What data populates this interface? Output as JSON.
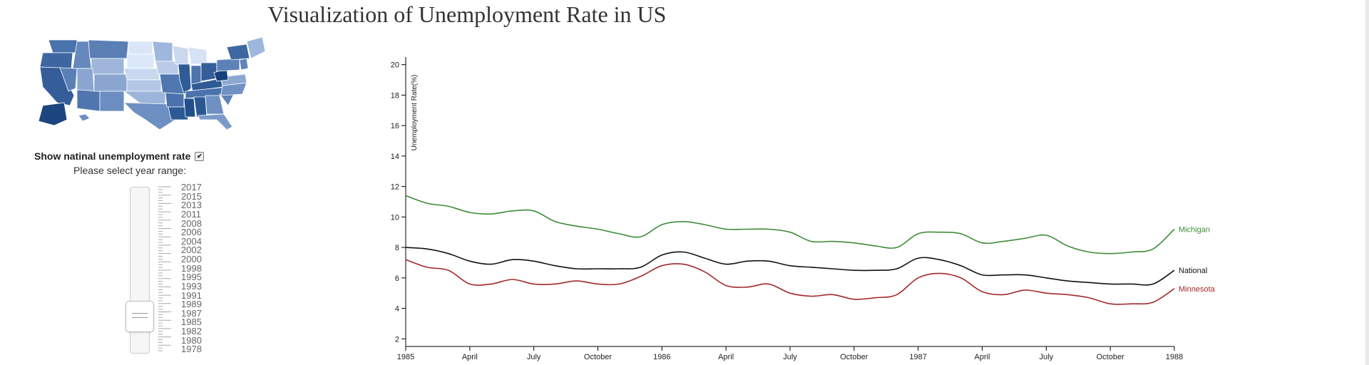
{
  "page": {
    "title": "Visualization of Unemployment Rate in US"
  },
  "controls": {
    "toggle_label": "Show natinal unemployment rate",
    "toggle_checked": true,
    "range_label": "Please select year range:",
    "years": [
      "2017",
      "2015",
      "2013",
      "2011",
      "2008",
      "2006",
      "2004",
      "2002",
      "2000",
      "1998",
      "1995",
      "1993",
      "1991",
      "1989",
      "1987",
      "1985",
      "1982",
      "1980",
      "1978"
    ]
  },
  "colors": {
    "map_dark": "#2c5a94",
    "map_light": "#dbe7f7",
    "michigan": "#3c8c36",
    "national": "#111111",
    "minnesota": "#a3282a"
  },
  "chart_data": {
    "type": "line",
    "x": [
      "1985-01",
      "1985-02",
      "1985-03",
      "1985-04",
      "1985-05",
      "1985-06",
      "1985-07",
      "1985-08",
      "1985-09",
      "1985-10",
      "1985-11",
      "1985-12",
      "1986-01",
      "1986-02",
      "1986-03",
      "1986-04",
      "1986-05",
      "1986-06",
      "1986-07",
      "1986-08",
      "1986-09",
      "1986-10",
      "1986-11",
      "1986-12",
      "1987-01",
      "1987-02",
      "1987-03",
      "1987-04",
      "1987-05",
      "1987-06",
      "1987-07",
      "1987-08",
      "1987-09",
      "1987-10",
      "1987-11",
      "1987-12",
      "1988-01"
    ],
    "x_ticks": [
      "1985",
      "April",
      "July",
      "October",
      "1986",
      "April",
      "July",
      "October",
      "1987",
      "April",
      "July",
      "October",
      "1988"
    ],
    "ylabel": "Unemployment Rate(%)",
    "ylim": [
      1.5,
      20.5
    ],
    "y_ticks": [
      2,
      4,
      6,
      8,
      10,
      12,
      14,
      16,
      18,
      20
    ],
    "series": [
      {
        "name": "Michigan",
        "color": "#3c8c36",
        "values": [
          11.4,
          10.9,
          10.7,
          10.3,
          10.2,
          10.4,
          10.4,
          9.7,
          9.4,
          9.2,
          8.9,
          8.7,
          9.5,
          9.7,
          9.5,
          9.2,
          9.2,
          9.2,
          9.0,
          8.4,
          8.4,
          8.3,
          8.1,
          8.0,
          8.9,
          9.0,
          8.9,
          8.3,
          8.4,
          8.6,
          8.8,
          8.1,
          7.7,
          7.6,
          7.7,
          7.9,
          9.2
        ]
      },
      {
        "name": "National",
        "color": "#111111",
        "values": [
          8.0,
          7.9,
          7.6,
          7.1,
          6.9,
          7.2,
          7.1,
          6.8,
          6.6,
          6.6,
          6.6,
          6.7,
          7.5,
          7.7,
          7.3,
          6.9,
          7.1,
          7.1,
          6.8,
          6.7,
          6.6,
          6.5,
          6.5,
          6.6,
          7.3,
          7.2,
          6.8,
          6.2,
          6.2,
          6.2,
          6.0,
          5.8,
          5.7,
          5.6,
          5.6,
          5.6,
          6.5
        ]
      },
      {
        "name": "Minnesota",
        "color": "#a3282a",
        "values": [
          7.2,
          6.7,
          6.5,
          5.6,
          5.6,
          5.9,
          5.6,
          5.6,
          5.8,
          5.6,
          5.6,
          6.1,
          6.8,
          6.9,
          6.4,
          5.5,
          5.4,
          5.6,
          5.0,
          4.8,
          4.9,
          4.6,
          4.7,
          4.9,
          6.0,
          6.3,
          6.0,
          5.1,
          4.9,
          5.2,
          5.0,
          4.9,
          4.7,
          4.3,
          4.3,
          4.4,
          5.3
        ]
      }
    ]
  }
}
